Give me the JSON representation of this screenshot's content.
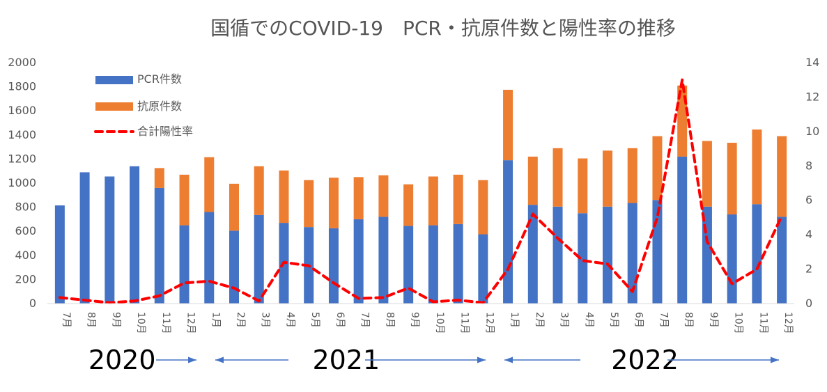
{
  "chart_data": {
    "type": "bar",
    "title": "国循でのCOVID-19　PCR・抗原件数と陽性率の推移",
    "categories": [
      "7月",
      "8月",
      "9月",
      "10月",
      "11月",
      "12月",
      "1月",
      "2月",
      "3月",
      "4月",
      "5月",
      "6月",
      "7月",
      "8月",
      "9月",
      "10月",
      "11月",
      "12月",
      "1月",
      "2月",
      "3月",
      "4月",
      "5月",
      "6月",
      "7月",
      "8月",
      "9月",
      "10月",
      "11月",
      "12月"
    ],
    "y_left": {
      "min": 0,
      "max": 2000,
      "ticks": [
        0,
        200,
        400,
        600,
        800,
        1000,
        1200,
        1400,
        1600,
        1800,
        2000
      ]
    },
    "y_right": {
      "min": 0,
      "max": 14,
      "ticks": [
        0,
        2,
        4,
        6,
        8,
        10,
        12,
        14
      ]
    },
    "series": [
      {
        "name": "PCR件数",
        "type": "bar",
        "stack": "tests",
        "color": "#4472c4",
        "values": [
          815,
          1090,
          1055,
          1140,
          960,
          650,
          760,
          605,
          735,
          670,
          635,
          625,
          700,
          720,
          645,
          650,
          660,
          575,
          1190,
          820,
          805,
          750,
          805,
          835,
          860,
          1220,
          805,
          740,
          825,
          720
        ]
      },
      {
        "name": "抗原件数",
        "type": "bar",
        "stack": "tests",
        "color": "#ed7d31",
        "values": [
          0,
          0,
          0,
          0,
          165,
          420,
          455,
          390,
          405,
          435,
          390,
          420,
          350,
          345,
          345,
          405,
          410,
          450,
          585,
          400,
          485,
          455,
          465,
          455,
          530,
          590,
          545,
          595,
          620,
          670
        ]
      },
      {
        "name": "合計陽性率",
        "type": "line",
        "axis": "right",
        "color": "#ff0000",
        "dashed": true,
        "values": [
          0.35,
          0.2,
          0.05,
          0.15,
          0.45,
          1.2,
          1.3,
          0.9,
          0.15,
          2.4,
          2.2,
          1.2,
          0.3,
          0.35,
          0.9,
          0.1,
          0.2,
          0.05,
          2.0,
          5.2,
          3.8,
          2.5,
          2.3,
          0.7,
          5.0,
          13.0,
          3.6,
          1.15,
          2.0,
          5.1
        ]
      }
    ],
    "legend": {
      "position": "top-left",
      "entries": [
        "PCR件数",
        "抗原件数",
        "合計陽性率"
      ]
    },
    "year_groups": [
      {
        "label": "2020",
        "start_index": 0,
        "end_index": 5
      },
      {
        "label": "2021",
        "start_index": 6,
        "end_index": 17
      },
      {
        "label": "2022",
        "start_index": 18,
        "end_index": 29
      }
    ],
    "grid": false
  }
}
